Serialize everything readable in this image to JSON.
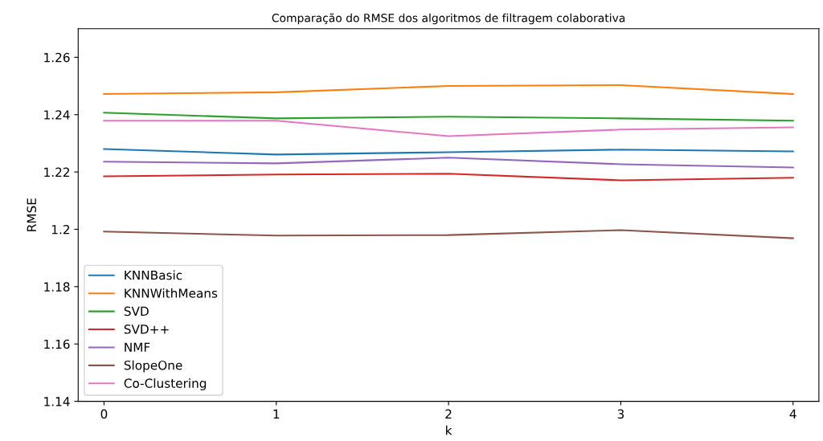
{
  "chart_data": {
    "type": "line",
    "title": "Comparação do RMSE dos algoritmos de filtragem colaborativa",
    "xlabel": "k",
    "ylabel": "RMSE",
    "x": [
      0,
      1,
      2,
      3,
      4
    ],
    "xlim": [
      -0.15,
      4.15
    ],
    "xticks": [
      0,
      1,
      2,
      3,
      4
    ],
    "ylim": [
      1.14,
      1.27
    ],
    "yticks": [
      1.14,
      1.16,
      1.18,
      1.2,
      1.22,
      1.24,
      1.26
    ],
    "grid": false,
    "legend": "bottom left",
    "marker": "none",
    "line_style": "solid",
    "series": [
      {
        "name": "KNNBasic",
        "color": "#1f77b4",
        "values": [
          1.228,
          1.2261,
          1.2269,
          1.2278,
          1.2272
        ]
      },
      {
        "name": "KNNWithMeans",
        "color": "#ff7f0e",
        "values": [
          1.2472,
          1.2478,
          1.25,
          1.2503,
          1.2472
        ]
      },
      {
        "name": "SVD",
        "color": "#2ca02c",
        "values": [
          1.2407,
          1.2387,
          1.2393,
          1.2387,
          1.2379
        ]
      },
      {
        "name": "SVD++",
        "color": "#d62728",
        "values": [
          1.2185,
          1.2191,
          1.2194,
          1.2171,
          1.218
        ]
      },
      {
        "name": "NMF",
        "color": "#9467bd",
        "values": [
          1.2236,
          1.223,
          1.225,
          1.2227,
          1.2216
        ]
      },
      {
        "name": "SlopeOne",
        "color": "#8c564b",
        "values": [
          1.1992,
          1.1978,
          1.198,
          1.1997,
          1.1969
        ]
      },
      {
        "name": "Co-Clustering",
        "color": "#e377c2",
        "values": [
          1.2379,
          1.2379,
          1.2325,
          1.2348,
          1.2356
        ]
      }
    ]
  }
}
